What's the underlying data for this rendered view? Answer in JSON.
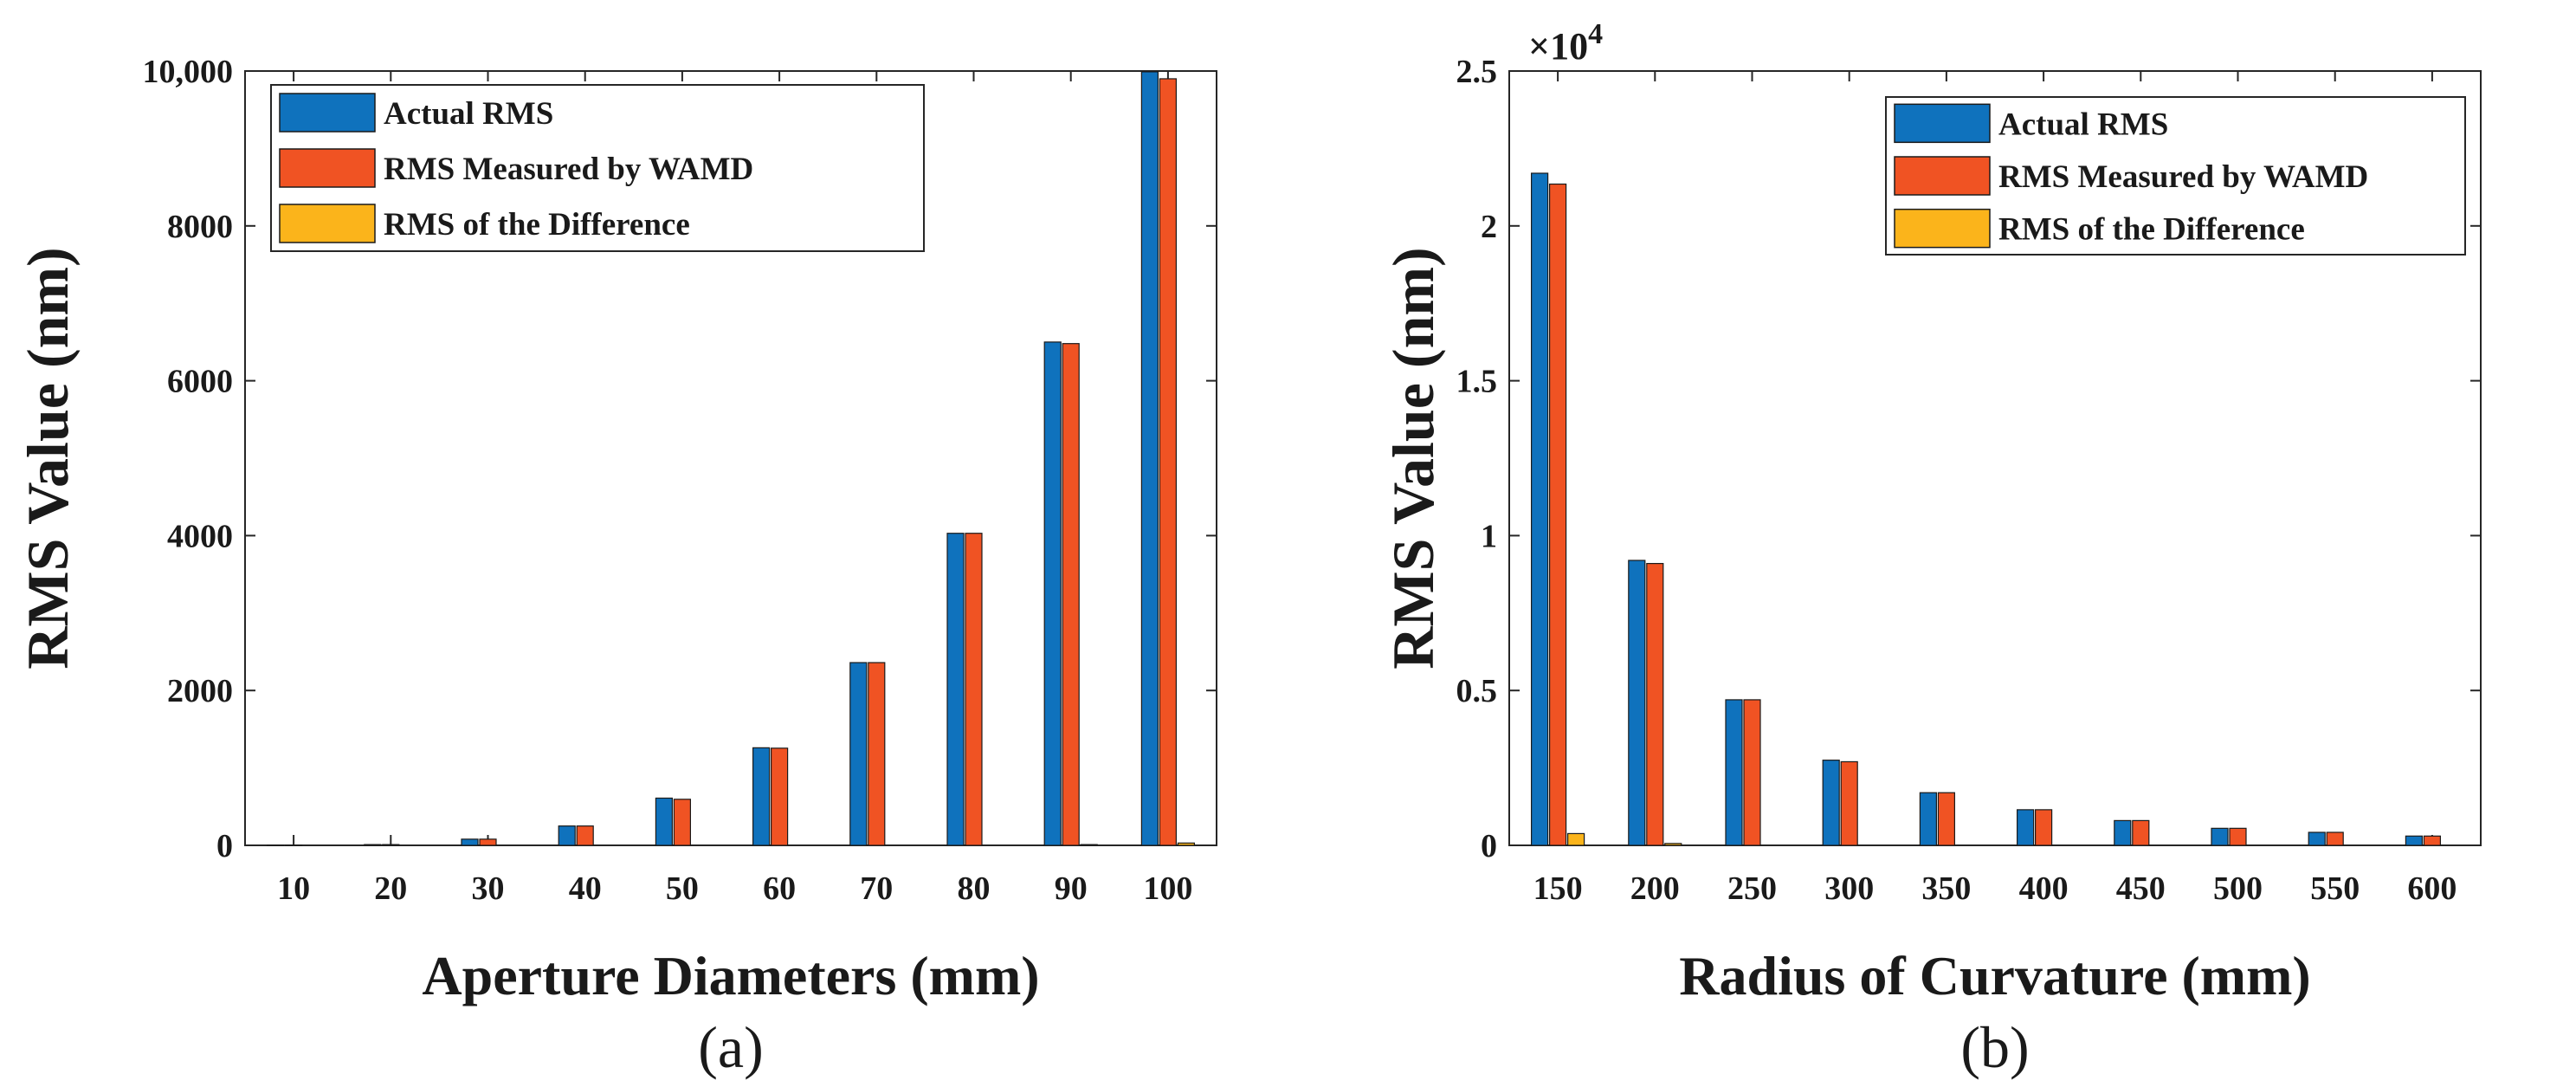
{
  "chart_data": [
    {
      "type": "bar",
      "panel": "a",
      "caption": "(a)",
      "xlabel": "Aperture Diameters (mm)",
      "ylabel": "RMS Value (nm)",
      "categories": [
        "10",
        "20",
        "30",
        "40",
        "50",
        "60",
        "70",
        "80",
        "90",
        "100"
      ],
      "ylim": [
        0,
        10000
      ],
      "yticks": [
        0,
        2000,
        4000,
        6000,
        8000,
        10000
      ],
      "ytick_labels": [
        "0",
        "2000",
        "4000",
        "6000",
        "8000",
        "10,000"
      ],
      "y_multiplier": "",
      "legend_position": "top-left",
      "series": [
        {
          "name": "Actual RMS",
          "color": "#0f72bd",
          "values": [
            1,
            10,
            80,
            250,
            610,
            1260,
            2360,
            4030,
            6500,
            9990
          ]
        },
        {
          "name": "RMS Measured by WAMD",
          "color": "#f05323",
          "values": [
            1,
            10,
            80,
            250,
            595,
            1255,
            2360,
            4030,
            6480,
            9900
          ]
        },
        {
          "name": "RMS of the Difference",
          "color": "#fbb41b",
          "values": [
            0,
            0,
            0,
            0,
            0,
            0,
            0,
            0,
            10,
            30
          ]
        }
      ]
    },
    {
      "type": "bar",
      "panel": "b",
      "caption": "(b)",
      "xlabel": "Radius of Curvature (mm)",
      "ylabel": "RMS Value (nm)",
      "categories": [
        "150",
        "200",
        "250",
        "300",
        "350",
        "400",
        "450",
        "500",
        "550",
        "600"
      ],
      "ylim": [
        0,
        25000
      ],
      "yticks": [
        0,
        5000,
        10000,
        15000,
        20000,
        25000
      ],
      "ytick_labels": [
        "0",
        "0.5",
        "1",
        "1.5",
        "2",
        "2.5"
      ],
      "y_multiplier": "×10",
      "y_multiplier_exp": "4",
      "legend_position": "top-right",
      "series": [
        {
          "name": "Actual RMS",
          "color": "#0f72bd",
          "values": [
            21700,
            9200,
            4700,
            2750,
            1700,
            1150,
            800,
            550,
            420,
            300
          ]
        },
        {
          "name": "RMS Measured by WAMD",
          "color": "#f05323",
          "values": [
            21350,
            9100,
            4700,
            2700,
            1700,
            1150,
            800,
            550,
            420,
            300
          ]
        },
        {
          "name": "RMS of the Difference",
          "color": "#fbb41b",
          "values": [
            380,
            60,
            0,
            0,
            0,
            0,
            0,
            0,
            0,
            0
          ]
        }
      ]
    }
  ]
}
